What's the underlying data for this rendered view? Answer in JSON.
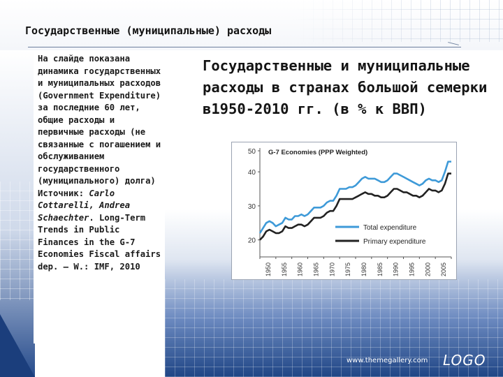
{
  "slide": {
    "title": "Государственные (муниципальные) расходы",
    "heading": "Государственные и муниципальные расходы в странах большой семерки в1950-2010 гг. (в % к ВВП)",
    "side_text_main": "На слайде показана динамика государственных и муниципальных расходов (Government Expenditure) за последние 60 лет, общие расходы и первичные расходы (не связанные с погашением и обслуживанием государственного (муниципального) долга)",
    "source_prefix": "Источник: ",
    "source_authors": "Carlo Cottarelli, Andrea Schaechter",
    "source_rest": ". Long-Term Trends in Public Finances in the G-7 Economies Fiscal affairs dep. – W.: IMF, 2010",
    "footer_url": "www.themegallery.com",
    "footer_logo": "LOGO"
  },
  "colors": {
    "total": "#3e9ad8",
    "primary": "#222222",
    "accent_blue": "#1f4585"
  },
  "chart_data": {
    "type": "line",
    "title": "G-7 Economies (PPP Weighted)",
    "ylim": [
      15,
      47
    ],
    "yticks": [
      20,
      30,
      40,
      50
    ],
    "xlim": [
      1950,
      2010
    ],
    "xticks": [
      "1950",
      "1955",
      "1960",
      "1965",
      "1970",
      "1975",
      "1980",
      "1985",
      "1990",
      "1995",
      "2000",
      "2005",
      "2010"
    ],
    "grid": false,
    "legend_position": "bottom-right",
    "series": [
      {
        "name": "Total expenditure",
        "color": "#3e9ad8",
        "x": [
          1950,
          1951,
          1952,
          1953,
          1954,
          1955,
          1956,
          1957,
          1958,
          1959,
          1960,
          1961,
          1962,
          1963,
          1964,
          1965,
          1966,
          1967,
          1968,
          1969,
          1970,
          1971,
          1972,
          1973,
          1974,
          1975,
          1976,
          1977,
          1978,
          1979,
          1980,
          1981,
          1982,
          1983,
          1984,
          1985,
          1986,
          1987,
          1988,
          1989,
          1990,
          1991,
          1992,
          1993,
          1994,
          1995,
          1996,
          1997,
          1998,
          1999,
          2000,
          2001,
          2002,
          2003,
          2004,
          2005,
          2006,
          2007,
          2008,
          2009,
          2010
        ],
        "y": [
          22,
          23.5,
          25,
          25.5,
          25,
          24,
          24.5,
          25,
          26.5,
          26,
          26,
          27,
          27,
          27.5,
          27,
          27.5,
          28.5,
          29.5,
          29.5,
          29.5,
          30,
          31,
          31.5,
          31.5,
          33,
          35,
          35,
          35,
          35.5,
          35.5,
          36,
          37,
          38,
          38.5,
          38,
          38,
          38,
          37.5,
          37,
          37,
          37.5,
          38.5,
          39.5,
          39.5,
          39,
          38.5,
          38,
          37.5,
          37,
          36.5,
          36,
          36.5,
          37.5,
          38,
          37.5,
          37.5,
          37,
          37.5,
          40,
          43,
          43
        ]
      },
      {
        "name": "Primary expenditure",
        "color": "#222222",
        "x": [
          1950,
          1951,
          1952,
          1953,
          1954,
          1955,
          1956,
          1957,
          1958,
          1959,
          1960,
          1961,
          1962,
          1963,
          1964,
          1965,
          1966,
          1967,
          1968,
          1969,
          1970,
          1971,
          1972,
          1973,
          1974,
          1975,
          1976,
          1977,
          1978,
          1979,
          1980,
          1981,
          1982,
          1983,
          1984,
          1985,
          1986,
          1987,
          1988,
          1989,
          1990,
          1991,
          1992,
          1993,
          1994,
          1995,
          1996,
          1997,
          1998,
          1999,
          2000,
          2001,
          2002,
          2003,
          2004,
          2005,
          2006,
          2007,
          2008,
          2009,
          2010
        ],
        "y": [
          20,
          21,
          22.5,
          23,
          22.5,
          22,
          22,
          22.5,
          24,
          23.5,
          23.5,
          24,
          24.5,
          24.5,
          24,
          24.5,
          25.5,
          26.5,
          26.5,
          26.5,
          27,
          28,
          28.5,
          28.5,
          30,
          32,
          32,
          32,
          32,
          32,
          32.5,
          33,
          33.5,
          34,
          33.5,
          33.5,
          33,
          33,
          32.5,
          32.5,
          33,
          34,
          35,
          35,
          34.5,
          34,
          34,
          33.5,
          33,
          33,
          32.5,
          33,
          34,
          35,
          34.5,
          34.5,
          34,
          34.5,
          36.5,
          39.5,
          39.5
        ]
      }
    ]
  }
}
